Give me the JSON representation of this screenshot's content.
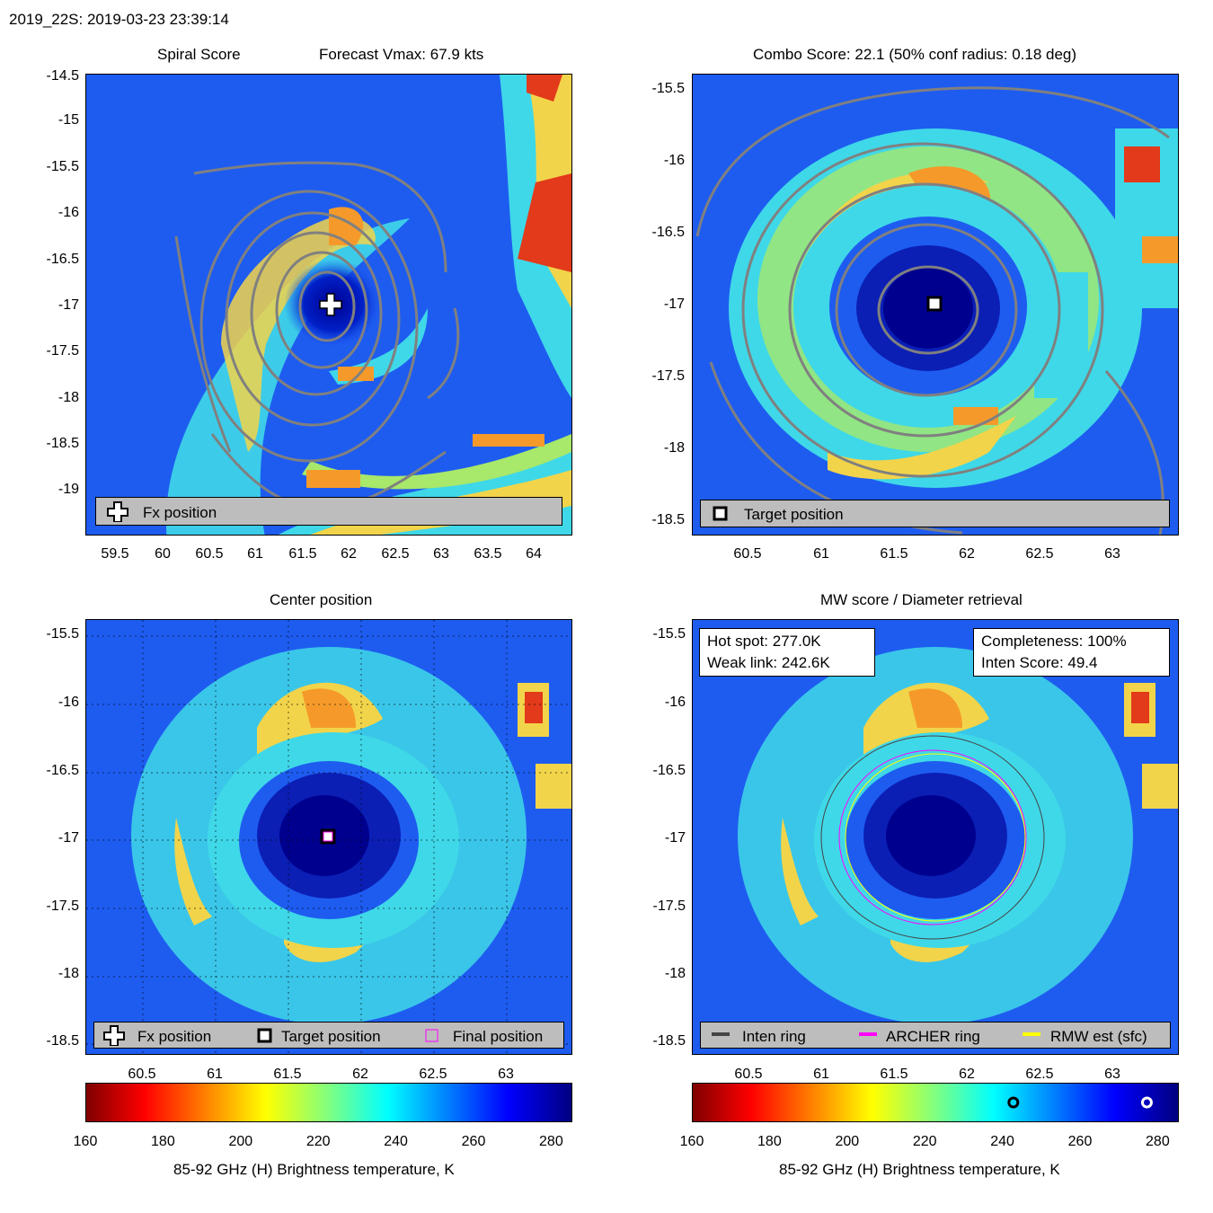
{
  "header": {
    "title": "2019_22S: 2019-03-23 23:39:14"
  },
  "panels": {
    "spiral": {
      "title_left": "Spiral Score",
      "title_right": "Forecast Vmax: 67.9 kts",
      "legend": "Fx position",
      "xticks": [
        "59.5",
        "60",
        "60.5",
        "61",
        "61.5",
        "62",
        "62.5",
        "63",
        "63.5",
        "64"
      ],
      "yticks": [
        "-14.5",
        "-15",
        "-15.5",
        "-16",
        "-16.5",
        "-17",
        "-17.5",
        "-18",
        "-18.5",
        "-19"
      ]
    },
    "combo": {
      "title": "Combo Score: 22.1  (50% conf radius: 0.18 deg)",
      "legend": "Target position",
      "xticks": [
        "60.5",
        "61",
        "61.5",
        "62",
        "62.5",
        "63"
      ],
      "yticks": [
        "-15.5",
        "-16",
        "-16.5",
        "-17",
        "-17.5",
        "-18",
        "-18.5"
      ]
    },
    "center": {
      "title": "Center position",
      "legend": [
        "Fx position",
        "Target position",
        "Final position"
      ],
      "xticks": [
        "60.5",
        "61",
        "61.5",
        "62",
        "62.5",
        "63"
      ],
      "yticks": [
        "-15.5",
        "-16",
        "-16.5",
        "-17",
        "-17.5",
        "-18",
        "-18.5"
      ]
    },
    "mw": {
      "title": "MW score / Diameter retrieval",
      "hot_spot": "Hot spot: 277.0K",
      "weak_link": "Weak link: 242.6K",
      "completeness": "Completeness: 100%",
      "inten_score": "Inten Score: 49.4",
      "legend": [
        "Inten ring",
        "ARCHER ring",
        "RMW est (sfc)"
      ],
      "xticks": [
        "60.5",
        "61",
        "61.5",
        "62",
        "62.5",
        "63"
      ],
      "yticks": [
        "-15.5",
        "-16",
        "-16.5",
        "-17",
        "-17.5",
        "-18",
        "-18.5"
      ]
    }
  },
  "colorbar": {
    "ticks": [
      "160",
      "180",
      "200",
      "220",
      "240",
      "260",
      "280"
    ],
    "label": "85-92 GHz (H) Brightness temperature, K",
    "range": [
      160,
      285
    ],
    "markers": [
      242.6,
      277.0
    ]
  },
  "colors": {
    "ring_inten": "#444444",
    "ring_archer": "#ff00ff",
    "ring_rmw": "#ffff00",
    "contour": "#808080"
  },
  "chart_data": [
    {
      "type": "heatmap",
      "title": "Spiral Score",
      "subtitle": "Forecast Vmax: 67.9 kts",
      "xlim": [
        59.2,
        64.4
      ],
      "ylim": [
        -19.5,
        -14.5
      ],
      "fx_position": [
        61.8,
        -16.95
      ]
    },
    {
      "type": "heatmap",
      "title": "Combo Score: 22.1  (50% conf radius: 0.18 deg)",
      "xlim": [
        60.2,
        63.45
      ],
      "ylim": [
        -18.55,
        -15.4
      ],
      "target_position": [
        61.78,
        -16.98
      ]
    },
    {
      "type": "heatmap",
      "title": "Center position",
      "xlim": [
        60.2,
        63.45
      ],
      "ylim": [
        -18.55,
        -15.4
      ],
      "center": [
        61.78,
        -16.98
      ]
    },
    {
      "type": "heatmap",
      "title": "MW score / Diameter retrieval",
      "xlim": [
        60.2,
        63.45
      ],
      "ylim": [
        -18.55,
        -15.4
      ],
      "ring_center": [
        61.78,
        -16.98
      ]
    }
  ]
}
